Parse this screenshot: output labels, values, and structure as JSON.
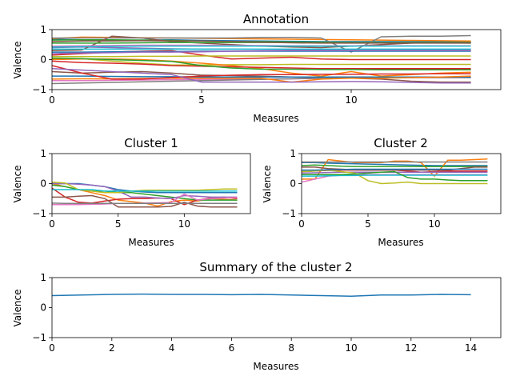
{
  "chart_data": [
    {
      "id": "annotation",
      "type": "line",
      "title": "Annotation",
      "xlabel": "Measures",
      "ylabel": "Valence",
      "xlim": [
        0,
        15
      ],
      "ylim": [
        -1,
        1
      ],
      "xticks": [
        "0",
        "5",
        "10"
      ],
      "yticks": [
        "−1",
        "0",
        "1"
      ],
      "x": [
        0,
        1,
        2,
        3,
        4,
        5,
        6,
        7,
        8,
        9,
        10,
        11,
        12,
        13,
        14
      ],
      "series": [
        {
          "color": "#1f77b4",
          "values": [
            0.68,
            0.66,
            0.64,
            0.65,
            0.66,
            0.64,
            0.63,
            0.62,
            0.61,
            0.6,
            0.6,
            0.6,
            0.6,
            0.6,
            0.6
          ]
        },
        {
          "color": "#ff7f0e",
          "values": [
            0.7,
            0.75,
            0.74,
            0.73,
            0.72,
            0.71,
            0.7,
            0.69,
            0.68,
            0.67,
            0.66,
            0.65,
            0.64,
            0.63,
            0.62
          ]
        },
        {
          "color": "#2ca02c",
          "values": [
            0.65,
            0.66,
            0.66,
            0.65,
            0.64,
            0.62,
            0.6,
            0.6,
            0.59,
            0.58,
            0.57,
            0.57,
            0.56,
            0.56,
            0.55
          ]
        },
        {
          "color": "#d62728",
          "values": [
            0.15,
            0.2,
            0.25,
            0.28,
            0.3,
            0.15,
            0.02,
            0.05,
            0.08,
            0.02,
            0.0,
            0.0,
            0.0,
            0.0,
            0.0
          ]
        },
        {
          "color": "#9467bd",
          "values": [
            0.4,
            0.42,
            0.4,
            0.38,
            0.36,
            0.35,
            0.35,
            0.34,
            0.34,
            0.34,
            0.34,
            0.34,
            0.34,
            0.34,
            0.34
          ]
        },
        {
          "color": "#8c564b",
          "values": [
            0.3,
            0.32,
            0.78,
            0.72,
            0.6,
            0.55,
            0.5,
            0.45,
            0.42,
            0.4,
            0.45,
            0.5,
            0.55,
            0.57,
            0.58
          ]
        },
        {
          "color": "#e377c2",
          "values": [
            -0.7,
            -0.7,
            -0.69,
            -0.68,
            -0.67,
            -0.66,
            -0.65,
            -0.65,
            -0.64,
            -0.63,
            -0.62,
            -0.61,
            -0.6,
            -0.6,
            -0.6
          ]
        },
        {
          "color": "#7f7f7f",
          "values": [
            0.72,
            0.72,
            0.72,
            0.72,
            0.72,
            0.72,
            0.72,
            0.74,
            0.74,
            0.72,
            0.25,
            0.76,
            0.78,
            0.78,
            0.8
          ]
        },
        {
          "color": "#bcbd22",
          "values": [
            0.02,
            0.03,
            -0.05,
            -0.12,
            -0.18,
            -0.18,
            -0.17,
            -0.17,
            -0.16,
            -0.16,
            -0.16,
            -0.16,
            -0.16,
            -0.16,
            -0.16
          ]
        },
        {
          "color": "#17becf",
          "values": [
            0.35,
            0.35,
            0.35,
            0.35,
            0.35,
            0.35,
            0.35,
            0.35,
            0.35,
            0.35,
            0.35,
            0.35,
            0.35,
            0.35,
            0.35
          ]
        },
        {
          "color": "#1f77b4",
          "values": [
            0.25,
            0.25,
            0.26,
            0.27,
            0.27,
            0.28,
            0.28,
            0.28,
            0.28,
            0.28,
            0.28,
            0.28,
            0.28,
            0.28,
            0.28
          ]
        },
        {
          "color": "#ff7f0e",
          "values": [
            0.0,
            0.02,
            0.02,
            0.0,
            -0.05,
            -0.12,
            -0.2,
            -0.3,
            -0.45,
            -0.55,
            -0.4,
            -0.55,
            -0.5,
            -0.45,
            -0.42
          ]
        },
        {
          "color": "#2ca02c",
          "values": [
            0.55,
            0.55,
            0.55,
            0.56,
            0.57,
            0.57,
            0.57,
            0.57,
            0.57,
            0.57,
            0.57,
            0.57,
            0.57,
            0.57,
            0.57
          ]
        },
        {
          "color": "#d62728",
          "values": [
            -0.05,
            -0.1,
            -0.12,
            -0.15,
            -0.2,
            -0.22,
            -0.24,
            -0.26,
            -0.28,
            -0.3,
            -0.3,
            -0.3,
            -0.3,
            -0.3,
            -0.3
          ]
        },
        {
          "color": "#9467bd",
          "values": [
            0.2,
            0.22,
            0.23,
            0.25,
            0.25,
            0.26,
            0.28,
            0.29,
            0.3,
            0.3,
            0.3,
            0.3,
            0.3,
            0.3,
            0.3
          ]
        },
        {
          "color": "#8c564b",
          "values": [
            -0.4,
            -0.45,
            -0.42,
            -0.4,
            -0.45,
            -0.52,
            -0.53,
            -0.55,
            -0.58,
            -0.6,
            -0.62,
            -0.65,
            -0.72,
            -0.75,
            -0.75
          ]
        },
        {
          "color": "#e377c2",
          "values": [
            0.45,
            0.46,
            0.47,
            0.48,
            0.48,
            0.48,
            0.47,
            0.47,
            0.46,
            0.46,
            0.46,
            0.46,
            0.46,
            0.46,
            0.46
          ]
        },
        {
          "color": "#7f7f7f",
          "values": [
            -0.8,
            -0.78,
            -0.76,
            -0.74,
            -0.72,
            -0.7,
            -0.68,
            -0.66,
            -0.64,
            -0.62,
            -0.6,
            -0.6,
            -0.6,
            -0.6,
            -0.6
          ]
        },
        {
          "color": "#bcbd22",
          "values": [
            0.1,
            0.1,
            0.1,
            0.11,
            0.11,
            0.12,
            0.12,
            0.12,
            0.12,
            0.12,
            0.12,
            0.12,
            0.12,
            0.12,
            0.12
          ]
        },
        {
          "color": "#17becf",
          "values": [
            0.42,
            0.43,
            0.44,
            0.45,
            0.45,
            0.45,
            0.45,
            0.45,
            0.45,
            0.45,
            0.45,
            0.45,
            0.45,
            0.45,
            0.45
          ]
        },
        {
          "color": "#1f77b4",
          "values": [
            -0.55,
            -0.55,
            -0.56,
            -0.57,
            -0.57,
            -0.58,
            -0.58,
            -0.58,
            -0.58,
            -0.58,
            -0.58,
            -0.58,
            -0.58,
            -0.58,
            -0.58
          ]
        },
        {
          "color": "#ff7f0e",
          "values": [
            -0.65,
            -0.64,
            -0.64,
            -0.63,
            -0.62,
            -0.62,
            -0.62,
            -0.62,
            -0.75,
            -0.65,
            -0.62,
            -0.62,
            -0.6,
            -0.58,
            -0.55
          ]
        },
        {
          "color": "#2ca02c",
          "values": [
            0.05,
            0.03,
            0.0,
            -0.03,
            -0.06,
            -0.2,
            -0.28,
            -0.32,
            -0.32,
            -0.33,
            -0.33,
            -0.34,
            -0.34,
            -0.34,
            -0.34
          ]
        },
        {
          "color": "#d62728",
          "values": [
            -0.2,
            -0.45,
            -0.65,
            -0.65,
            -0.6,
            -0.55,
            -0.52,
            -0.5,
            -0.5,
            -0.49,
            -0.49,
            -0.48,
            -0.48,
            -0.47,
            -0.47
          ]
        },
        {
          "color": "#8c564b",
          "values": [
            0.6,
            0.62,
            0.62,
            0.63,
            0.62,
            0.62,
            0.6,
            0.58,
            0.56,
            0.55,
            0.55,
            0.55,
            0.55,
            0.55,
            0.55
          ]
        },
        {
          "color": "#9467bd",
          "values": [
            -0.3,
            -0.35,
            -0.4,
            -0.45,
            -0.5,
            -0.75,
            -0.75,
            -0.75,
            -0.75,
            -0.74,
            -0.73,
            -0.74,
            -0.76,
            -0.78,
            -0.78
          ]
        }
      ]
    },
    {
      "id": "cluster1",
      "type": "line",
      "title": "Cluster 1",
      "xlabel": "Measures",
      "ylabel": "Valence",
      "xlim": [
        0,
        15
      ],
      "ylim": [
        -1,
        1
      ],
      "xticks": [
        "0",
        "5",
        "10"
      ],
      "yticks": [
        "−1",
        "0",
        "1"
      ],
      "x": [
        0,
        1,
        2,
        3,
        4,
        5,
        6,
        7,
        8,
        9,
        10,
        11,
        12,
        13,
        14
      ],
      "series": [
        {
          "color": "#1f77b4",
          "values": [
            0.0,
            0.0,
            0.0,
            -0.05,
            -0.1,
            -0.2,
            -0.25,
            -0.28,
            -0.3,
            -0.3,
            -0.3,
            -0.3,
            -0.3,
            -0.3,
            -0.3
          ]
        },
        {
          "color": "#ff7f0e",
          "values": [
            0.0,
            -0.1,
            -0.2,
            -0.3,
            -0.4,
            -0.55,
            -0.6,
            -0.65,
            -0.75,
            -0.6,
            -0.55,
            -0.58,
            -0.5,
            -0.52,
            -0.55
          ]
        },
        {
          "color": "#2ca02c",
          "values": [
            -0.05,
            -0.1,
            -0.2,
            -0.25,
            -0.25,
            -0.3,
            -0.3,
            -0.35,
            -0.4,
            -0.45,
            -0.5,
            -0.55,
            -0.55,
            -0.55,
            -0.55
          ]
        },
        {
          "color": "#d62728",
          "values": [
            -0.15,
            -0.45,
            -0.62,
            -0.65,
            -0.58,
            -0.52,
            -0.5,
            -0.5,
            -0.48,
            -0.5,
            -0.7,
            -0.55,
            -0.48,
            -0.45,
            -0.5
          ]
        },
        {
          "color": "#9467bd",
          "values": [
            0.0,
            0.0,
            -0.02,
            -0.05,
            -0.1,
            -0.25,
            -0.45,
            -0.45,
            -0.48,
            -0.5,
            -0.4,
            -0.42,
            -0.45,
            -0.45,
            -0.45
          ]
        },
        {
          "color": "#8c564b",
          "values": [
            -0.45,
            -0.45,
            -0.42,
            -0.4,
            -0.5,
            -0.78,
            -0.78,
            -0.78,
            -0.78,
            -0.76,
            -0.62,
            -0.75,
            -0.78,
            -0.78,
            -0.78
          ]
        },
        {
          "color": "#e377c2",
          "values": [
            -0.7,
            -0.7,
            -0.7,
            -0.69,
            -0.68,
            -0.66,
            -0.66,
            -0.65,
            -0.64,
            -0.63,
            -0.35,
            -0.55,
            -0.5,
            -0.48,
            -0.45
          ]
        },
        {
          "color": "#7f7f7f",
          "values": [
            -0.65,
            -0.66,
            -0.66,
            -0.66,
            -0.66,
            -0.66,
            -0.66,
            -0.66,
            -0.66,
            -0.66,
            -0.66,
            -0.66,
            -0.66,
            -0.66,
            -0.66
          ]
        },
        {
          "color": "#bcbd22",
          "values": [
            0.05,
            0.02,
            -0.2,
            -0.25,
            -0.3,
            -0.3,
            -0.25,
            -0.22,
            -0.22,
            -0.22,
            -0.22,
            -0.22,
            -0.2,
            -0.18,
            -0.18
          ]
        },
        {
          "color": "#17becf",
          "values": [
            -0.2,
            -0.2,
            -0.2,
            -0.2,
            -0.25,
            -0.25,
            -0.25,
            -0.25,
            -0.25,
            -0.25,
            -0.25,
            -0.25,
            -0.25,
            -0.25,
            -0.25
          ]
        }
      ]
    },
    {
      "id": "cluster2",
      "type": "line",
      "title": "Cluster 2",
      "xlabel": "Measures",
      "ylabel": "Valence",
      "xlim": [
        0,
        15
      ],
      "ylim": [
        -1,
        1
      ],
      "xticks": [
        "0",
        "5",
        "10"
      ],
      "yticks": [
        "−1",
        "0",
        "1"
      ],
      "x": [
        0,
        1,
        2,
        3,
        4,
        5,
        6,
        7,
        8,
        9,
        10,
        11,
        12,
        13,
        14
      ],
      "series": [
        {
          "color": "#1f77b4",
          "values": [
            0.7,
            0.7,
            0.68,
            0.67,
            0.66,
            0.65,
            0.64,
            0.63,
            0.62,
            0.61,
            0.6,
            0.6,
            0.6,
            0.6,
            0.6
          ]
        },
        {
          "color": "#ff7f0e",
          "values": [
            0.15,
            0.15,
            0.8,
            0.75,
            0.7,
            0.7,
            0.7,
            0.75,
            0.75,
            0.7,
            0.25,
            0.78,
            0.78,
            0.8,
            0.82
          ]
        },
        {
          "color": "#2ca02c",
          "values": [
            0.6,
            0.62,
            0.6,
            0.58,
            0.57,
            0.57,
            0.57,
            0.57,
            0.57,
            0.57,
            0.57,
            0.57,
            0.57,
            0.57,
            0.57
          ]
        },
        {
          "color": "#d62728",
          "values": [
            0.4,
            0.42,
            0.44,
            0.45,
            0.45,
            0.45,
            0.45,
            0.45,
            0.42,
            0.38,
            0.4,
            0.42,
            0.42,
            0.42,
            0.42
          ]
        },
        {
          "color": "#9467bd",
          "values": [
            0.35,
            0.36,
            0.37,
            0.38,
            0.38,
            0.38,
            0.38,
            0.38,
            0.38,
            0.38,
            0.38,
            0.38,
            0.38,
            0.38,
            0.38
          ]
        },
        {
          "color": "#8c564b",
          "values": [
            0.55,
            0.55,
            0.5,
            0.48,
            0.46,
            0.45,
            0.45,
            0.45,
            0.45,
            0.45,
            0.45,
            0.45,
            0.5,
            0.55,
            0.55
          ]
        },
        {
          "color": "#e377c2",
          "values": [
            0.05,
            0.15,
            0.25,
            0.28,
            0.3,
            0.3,
            0.3,
            0.3,
            0.3,
            0.3,
            0.3,
            0.3,
            0.3,
            0.3,
            0.3
          ]
        },
        {
          "color": "#7f7f7f",
          "values": [
            0.72,
            0.72,
            0.72,
            0.72,
            0.72,
            0.72,
            0.72,
            0.72,
            0.72,
            0.72,
            0.72,
            0.72,
            0.72,
            0.72,
            0.72
          ]
        },
        {
          "color": "#bcbd22",
          "values": [
            0.4,
            0.42,
            0.45,
            0.4,
            0.35,
            0.1,
            0.0,
            0.02,
            0.05,
            0.0,
            0.0,
            0.0,
            0.0,
            0.0,
            0.0
          ]
        },
        {
          "color": "#17becf",
          "values": [
            0.25,
            0.25,
            0.26,
            0.27,
            0.27,
            0.28,
            0.28,
            0.28,
            0.28,
            0.28,
            0.28,
            0.28,
            0.28,
            0.28,
            0.28
          ]
        },
        {
          "color": "#2ca02c",
          "values": [
            0.3,
            0.3,
            0.3,
            0.3,
            0.32,
            0.35,
            0.38,
            0.4,
            0.2,
            0.15,
            0.15,
            0.12,
            0.1,
            0.1,
            0.1
          ]
        },
        {
          "color": "#1f77b4",
          "values": [
            0.45,
            0.45,
            0.46,
            0.47,
            0.48,
            0.48,
            0.48,
            0.48,
            0.48,
            0.48,
            0.48,
            0.48,
            0.48,
            0.48,
            0.48
          ]
        }
      ]
    },
    {
      "id": "summary",
      "type": "line",
      "title": "Summary of the cluster 2",
      "xlabel": "Measures",
      "ylabel": "Valence",
      "xlim": [
        0,
        15
      ],
      "ylim": [
        -1,
        1
      ],
      "xticks": [
        "0",
        "2",
        "4",
        "6",
        "8",
        "10",
        "12",
        "14"
      ],
      "yticks": [
        "−1",
        "0",
        "1"
      ],
      "x": [
        0,
        1,
        2,
        3,
        4,
        5,
        6,
        7,
        8,
        9,
        10,
        11,
        12,
        13,
        14
      ],
      "series": [
        {
          "color": "#1f77b4",
          "values": [
            0.4,
            0.42,
            0.44,
            0.45,
            0.44,
            0.44,
            0.43,
            0.44,
            0.42,
            0.4,
            0.38,
            0.42,
            0.42,
            0.44,
            0.43
          ]
        }
      ]
    }
  ]
}
